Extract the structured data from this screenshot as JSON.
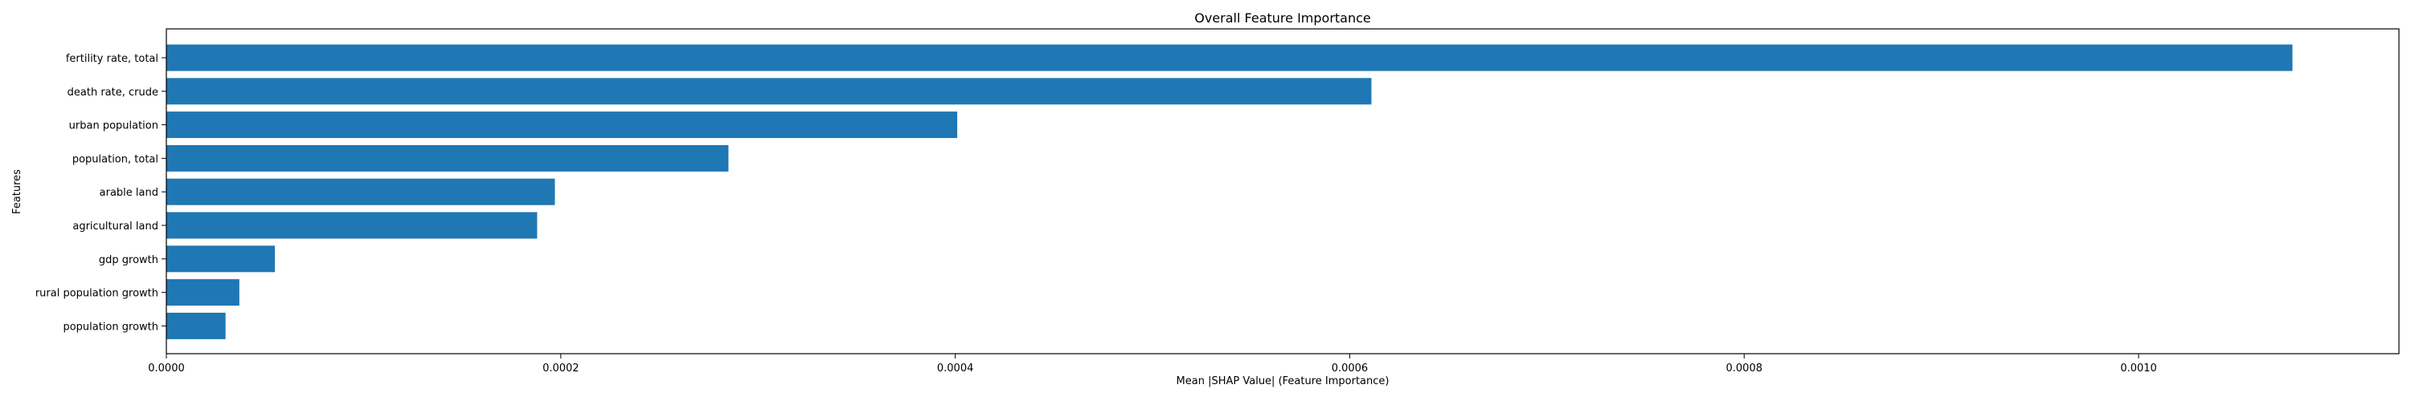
{
  "chart_data": {
    "type": "bar",
    "orientation": "horizontal",
    "title": "Overall Feature Importance",
    "xlabel": "Mean |SHAP Value| (Feature Importance)",
    "ylabel": "Features",
    "categories": [
      "fertility rate, total",
      "death rate, crude",
      "urban population",
      "population, total",
      "arable land",
      "agricultural land",
      "gdp growth",
      "rural population growth",
      "population growth"
    ],
    "values": [
      0.001078,
      0.000611,
      0.000401,
      0.000285,
      0.000197,
      0.000188,
      5.5e-05,
      3.7e-05,
      3e-05
    ],
    "xlim": [
      0,
      0.001132
    ],
    "xticks": [
      0,
      0.0002,
      0.0004,
      0.0006,
      0.0008,
      0.001
    ],
    "xtick_labels": [
      "0.0000",
      "0.0002",
      "0.0004",
      "0.0006",
      "0.0008",
      "0.0010"
    ],
    "bar_color": "#1f77b4",
    "grid": false,
    "legend": "none"
  }
}
